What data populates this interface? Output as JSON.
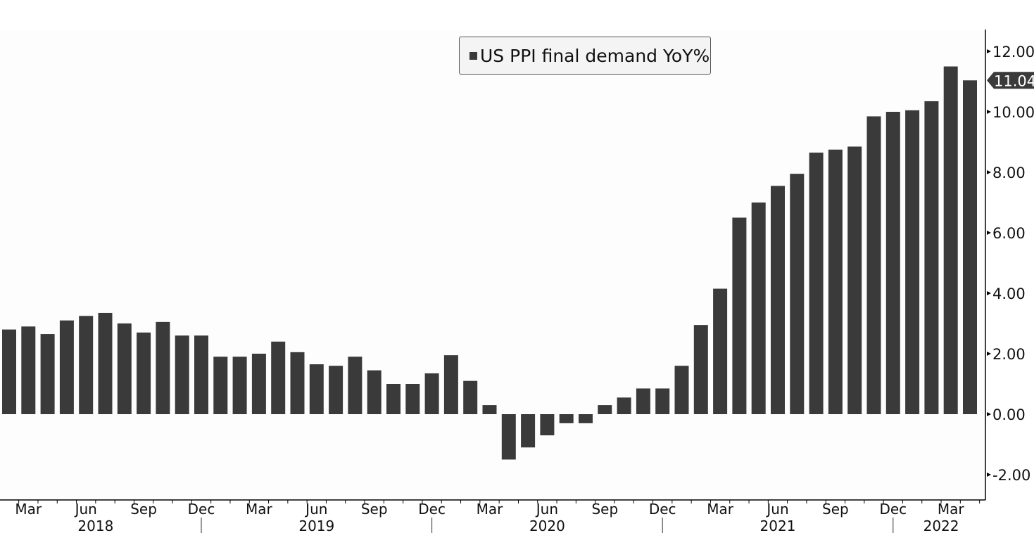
{
  "chart_data": {
    "type": "bar",
    "title": "",
    "legend": {
      "label": "US PPI final demand YoY%",
      "placement": "top-center"
    },
    "series": [
      {
        "name": "US PPI final demand YoY%",
        "color": "#3a3a3a"
      }
    ],
    "start_month": "2018-02",
    "values": [
      2.8,
      2.9,
      2.65,
      3.1,
      3.25,
      3.35,
      3.0,
      2.7,
      3.05,
      2.6,
      2.6,
      1.9,
      1.9,
      2.0,
      2.4,
      2.05,
      1.65,
      1.6,
      1.9,
      1.45,
      1.0,
      1.0,
      1.35,
      1.95,
      1.1,
      0.3,
      -1.5,
      -1.1,
      -0.7,
      -0.3,
      -0.3,
      0.3,
      0.55,
      0.85,
      0.85,
      1.6,
      2.95,
      4.15,
      6.5,
      7.0,
      7.55,
      7.95,
      8.65,
      8.75,
      8.85,
      9.85,
      10.0,
      10.05,
      10.35,
      11.5,
      11.04
    ],
    "ylim": [
      -2.6,
      12.6
    ],
    "yticks": [
      "-2.00",
      "0.00",
      "2.00",
      "4.00",
      "6.00",
      "8.00",
      "10.00",
      "12.00"
    ],
    "ytick_values": [
      -2,
      0,
      2,
      4,
      6,
      8,
      10,
      12
    ],
    "last_value_label": "11.04",
    "month_labels": [
      {
        "label": "Mar",
        "index": 1
      },
      {
        "label": "Jun",
        "index": 4
      },
      {
        "label": "Sep",
        "index": 7
      },
      {
        "label": "Dec",
        "index": 10
      },
      {
        "label": "Mar",
        "index": 13
      },
      {
        "label": "Jun",
        "index": 16
      },
      {
        "label": "Sep",
        "index": 19
      },
      {
        "label": "Dec",
        "index": 22
      },
      {
        "label": "Mar",
        "index": 25
      },
      {
        "label": "Jun",
        "index": 28
      },
      {
        "label": "Sep",
        "index": 31
      },
      {
        "label": "Dec",
        "index": 34
      },
      {
        "label": "Mar",
        "index": 37
      },
      {
        "label": "Jun",
        "index": 40
      },
      {
        "label": "Sep",
        "index": 43
      },
      {
        "label": "Dec",
        "index": 46
      },
      {
        "label": "Mar",
        "index": 49
      }
    ],
    "year_labels": [
      {
        "label": "2018",
        "index": 4.5
      },
      {
        "label": "2019",
        "index": 16
      },
      {
        "label": "2020",
        "index": 28
      },
      {
        "label": "2021",
        "index": 40
      },
      {
        "label": "2022",
        "index": 48.5
      }
    ],
    "year_separators": [
      10,
      22,
      34,
      46
    ]
  }
}
